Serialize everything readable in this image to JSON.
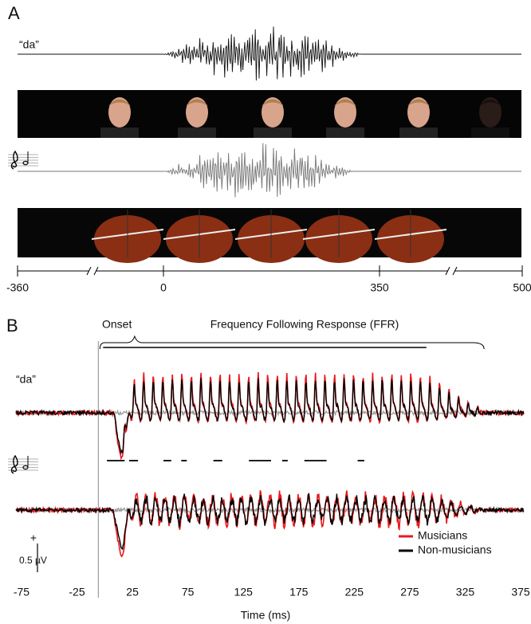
{
  "panel_a": {
    "label": "A",
    "syllable": "“da”",
    "axis_ticks": [
      -360,
      0,
      350,
      500
    ]
  },
  "chart_data": {
    "type": "line",
    "panel_label": "B",
    "syllable": "“da”",
    "onset_label": "Onset",
    "ffr_label": "Frequency Following Response (FFR)",
    "x_label": "Time (ms)",
    "xlim": [
      -80,
      380
    ],
    "xticks": [
      -75,
      -25,
      25,
      75,
      125,
      175,
      225,
      275,
      325,
      375
    ],
    "scale_sign": "+",
    "scale_label": "0.5 µV",
    "legend": [
      {
        "name": "Musicians",
        "color": "#e8191e"
      },
      {
        "name": "Non-musicians",
        "color": "#000000"
      }
    ]
  }
}
